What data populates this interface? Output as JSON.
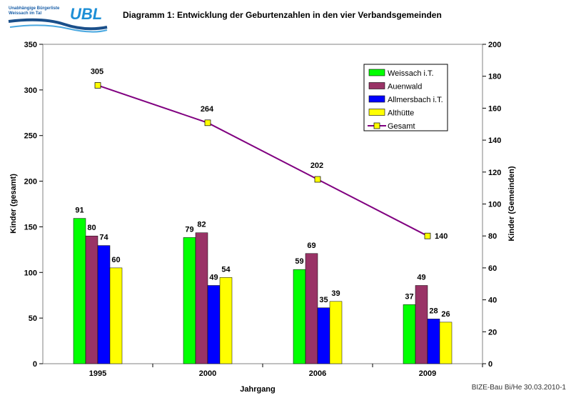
{
  "logo": {
    "line1": "Unabhängige Bürgerliste",
    "line2": "Weissach im Tal",
    "mark": "UBL"
  },
  "footer": "BIZE-Bau Bi/He 30.03.2010-1",
  "colors": {
    "Weissach i.T.": "#00ff00",
    "Auenwald": "#993366",
    "Allmersbach i.T.": "#0000ff",
    "Althütte": "#ffff00",
    "Gesamt": "#800080"
  },
  "chart_data": {
    "type": "bar+line",
    "title": "Diagramm 1: Entwicklung der Geburtenzahlen in den vier Verbandsgemeinden",
    "xlabel": "Jahrgang",
    "ylabel": "Kinder (gesamt)",
    "y2label": "Kinder (Gemeinden)",
    "ylim": [
      0,
      350
    ],
    "y2lim": [
      0,
      200
    ],
    "yticks": [
      0,
      50,
      100,
      150,
      200,
      250,
      300,
      350
    ],
    "y2ticks": [
      0,
      20,
      40,
      60,
      80,
      100,
      120,
      140,
      160,
      180,
      200
    ],
    "categories": [
      "1995",
      "2000",
      "2006",
      "2009"
    ],
    "legend": "top-right",
    "grid": false,
    "series": [
      {
        "name": "Weissach i.T.",
        "type": "bar",
        "axis": "right",
        "values": [
          91,
          79,
          59,
          37
        ]
      },
      {
        "name": "Auenwald",
        "type": "bar",
        "axis": "right",
        "values": [
          80,
          82,
          69,
          49
        ]
      },
      {
        "name": "Allmersbach i.T.",
        "type": "bar",
        "axis": "right",
        "values": [
          74,
          49,
          35,
          28
        ]
      },
      {
        "name": "Althütte",
        "type": "bar",
        "axis": "right",
        "values": [
          60,
          54,
          39,
          26
        ]
      },
      {
        "name": "Gesamt",
        "type": "line",
        "axis": "left",
        "values": [
          305,
          264,
          202,
          140
        ]
      }
    ]
  }
}
